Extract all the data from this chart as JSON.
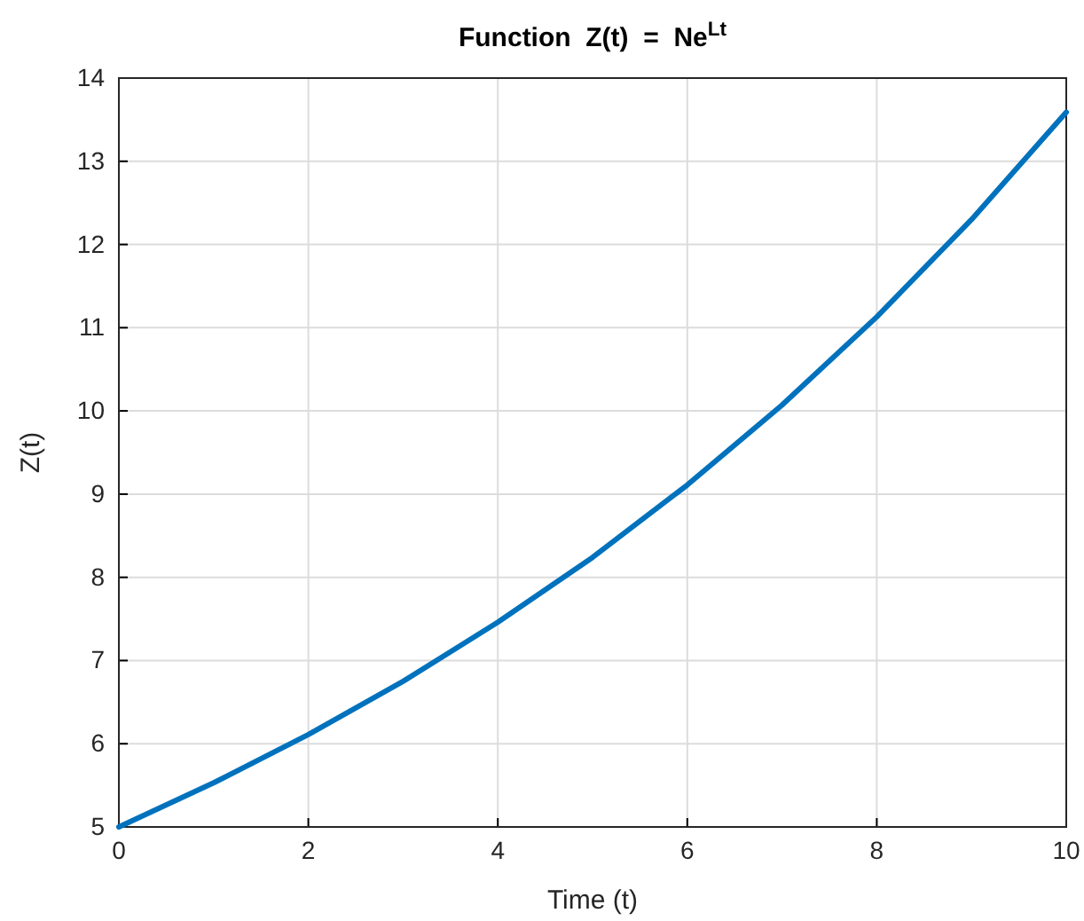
{
  "chart_data": {
    "type": "line",
    "title": "Function  Z(t)  =  Ne$^{Lt}$",
    "xlabel": "Time (t)",
    "ylabel": "Z(t)",
    "x": [
      0,
      1,
      2,
      3,
      4,
      5,
      6,
      7,
      8,
      9,
      10
    ],
    "series": [
      {
        "color": "#0072bd",
        "values": [
          5,
          5.53,
          6.11,
          6.75,
          7.46,
          8.24,
          9.11,
          10.07,
          11.13,
          12.3,
          13.59
        ]
      }
    ],
    "xlim": [
      0,
      10
    ],
    "xticks": [
      0,
      2,
      4,
      6,
      8,
      10
    ],
    "ylim": [
      5,
      14
    ],
    "yticks": [
      5,
      6,
      7,
      8,
      9,
      10,
      11,
      12,
      13,
      14
    ],
    "grid": true
  }
}
